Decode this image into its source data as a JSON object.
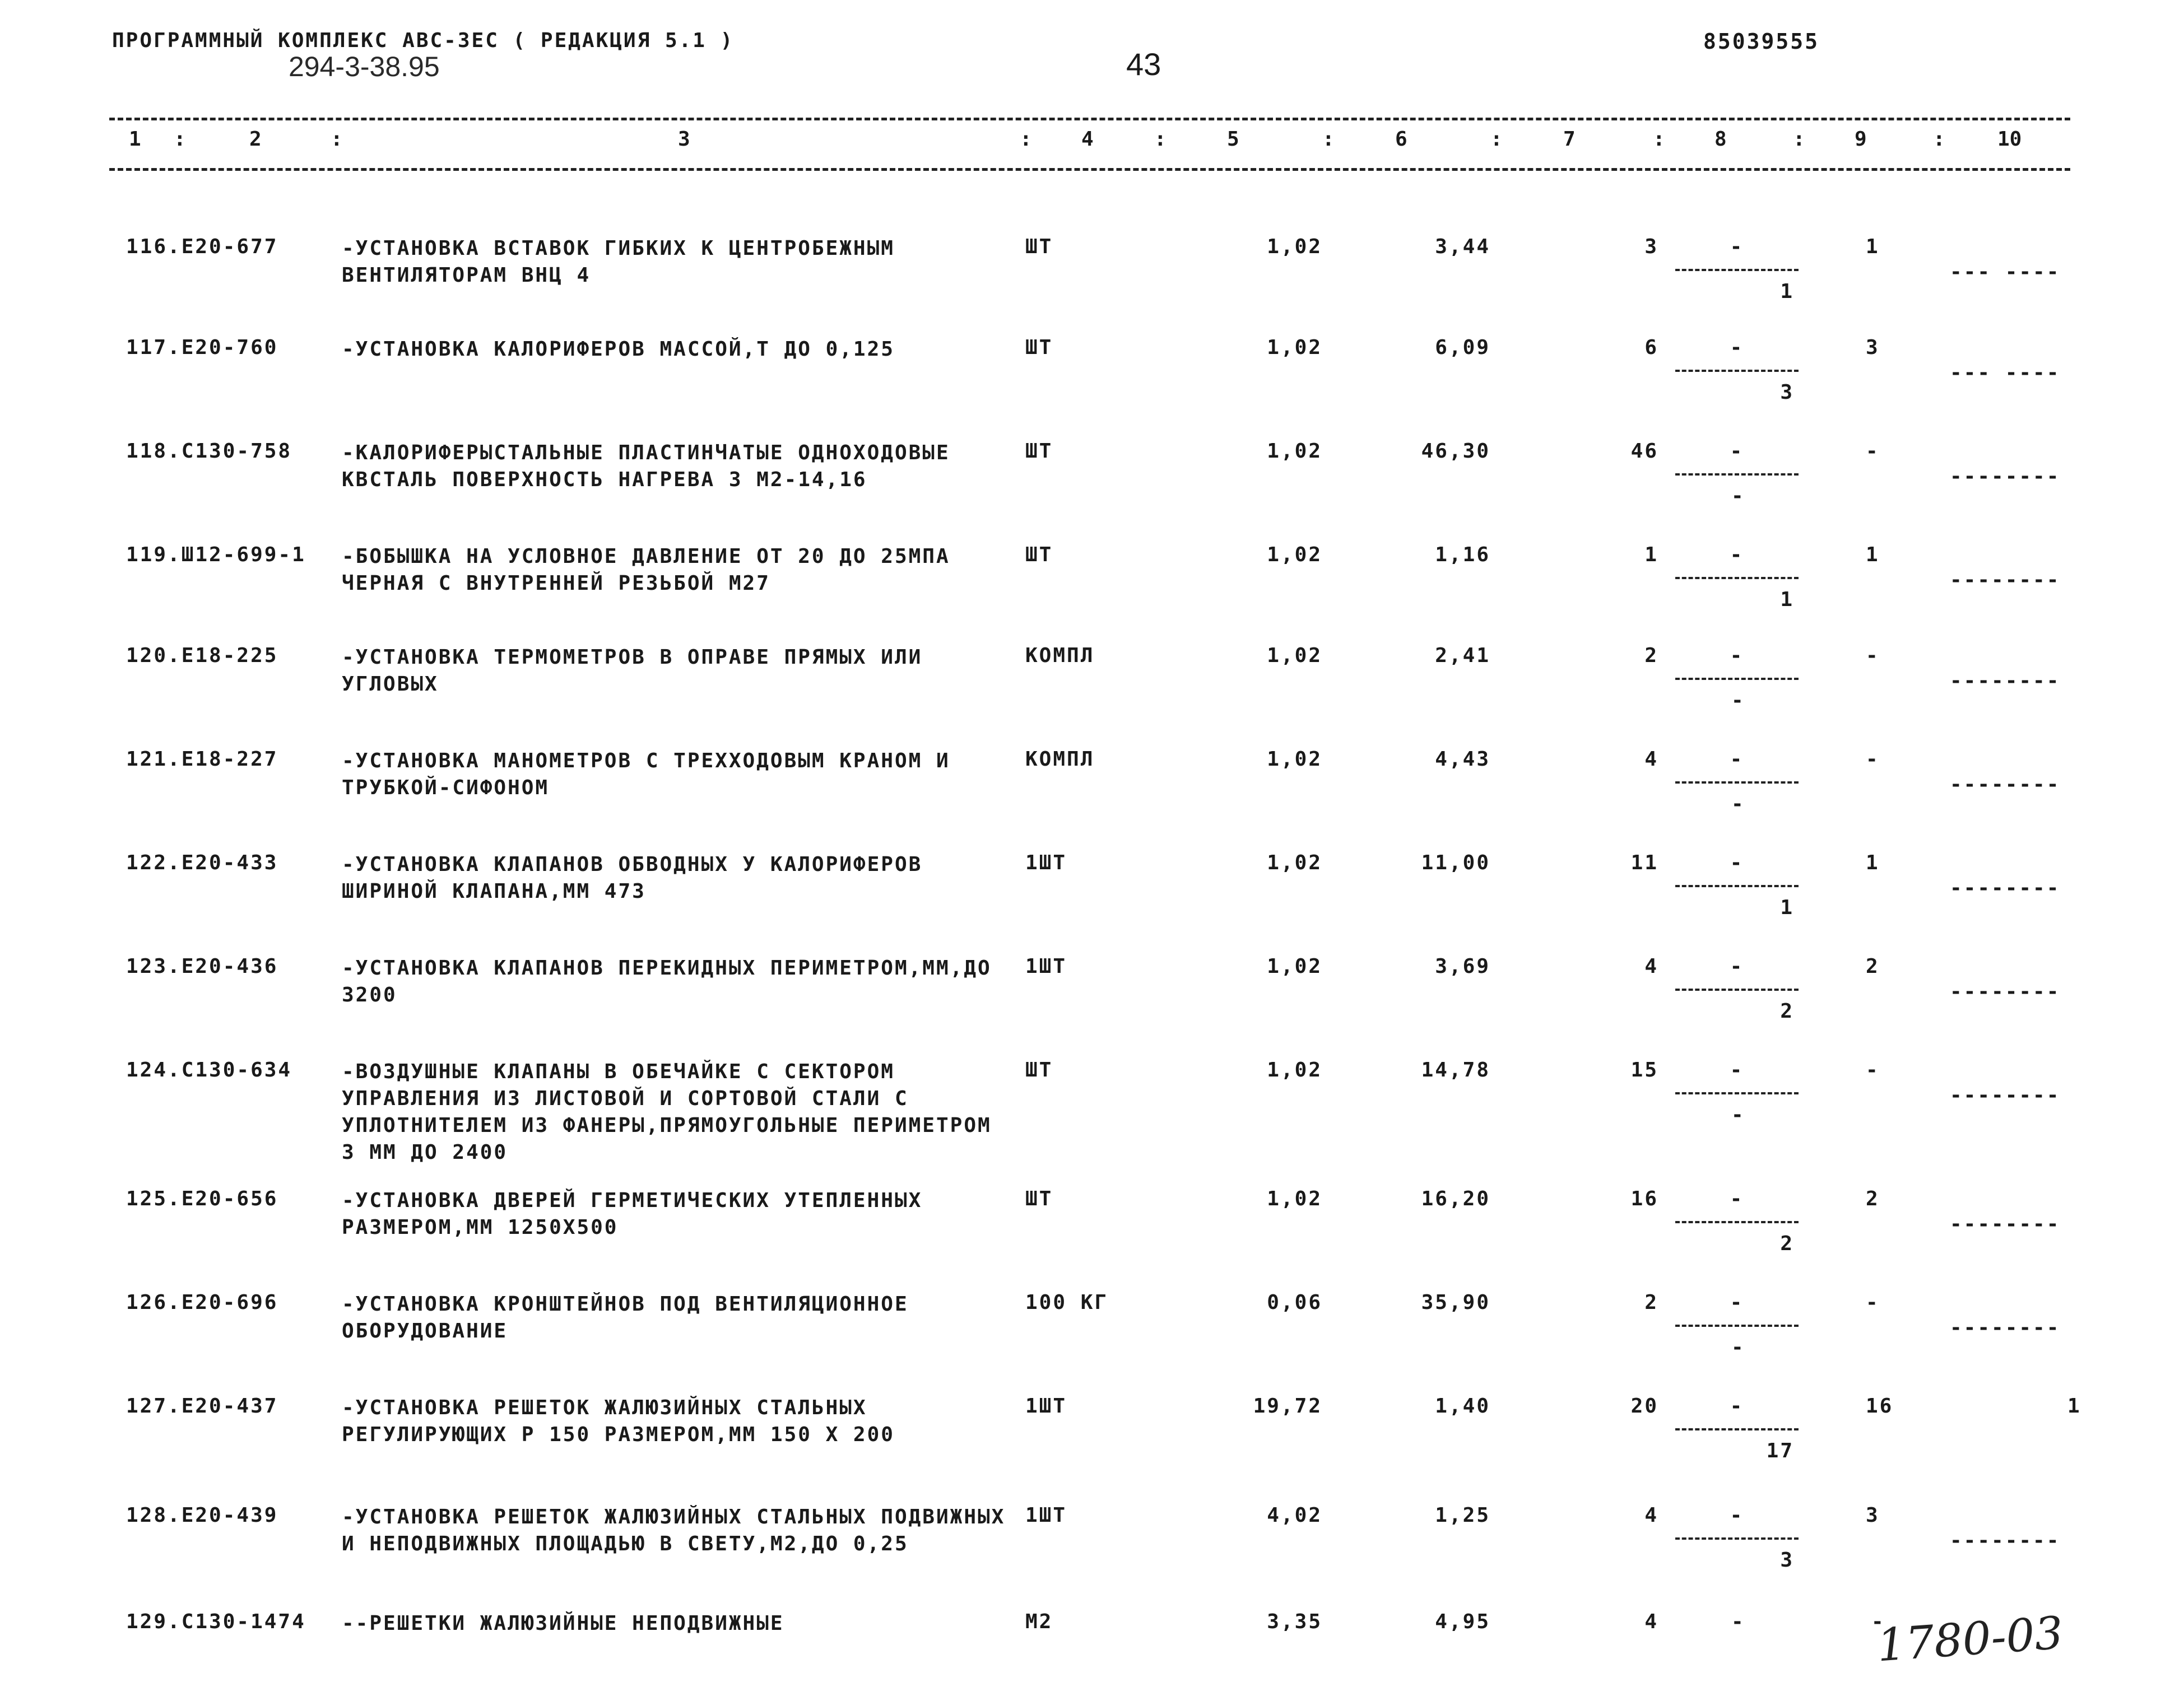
{
  "header": {
    "program": "ПРОГРАММНЫЙ КОМПЛЕКС АВС-ЗЕС  ( РЕДАКЦИЯ  5.1 )",
    "handwritten_code": "294-3-38.95",
    "page_number": "43",
    "doc_code": "85039555"
  },
  "columns": [
    "1",
    ":",
    "2",
    ":",
    "3",
    ":",
    "4",
    ":",
    "5",
    ":",
    "6",
    ":",
    "7",
    ":",
    "8",
    ":",
    "9",
    ":",
    "10"
  ],
  "rows": [
    {
      "num": "116.Е20-677",
      "name": "-УСТАНОВКА ВСТАВОК ГИБКИХ К ЦЕНТРОБЕЖНЫМ ВЕНТИЛЯТОРАМ ВНЦ 4",
      "unit": "ШТ",
      "c5": "1,02",
      "c6": "3,44",
      "c7": "3",
      "c8_top": "-",
      "c8_bot": "1",
      "c9": "1",
      "c10": "--- ----"
    },
    {
      "num": "117.Е20-760",
      "name": "-УСТАНОВКА КАЛОРИФЕРОВ МАССОЙ,Т ДО 0,125",
      "unit": "ШТ",
      "c5": "1,02",
      "c6": "6,09",
      "c7": "6",
      "c8_top": "-",
      "c8_bot": "3",
      "c9": "3",
      "c10": "--- ----"
    },
    {
      "num": "118.С130-758",
      "name": "-КАЛОРИФЕРЫСТАЛЬНЫЕ ПЛАСТИНЧАТЫЕ ОДНОХОДОВЫЕ КВСТАЛЬ ПОВЕРХНОСТЬ НАГРЕВА 3 М2-14,16",
      "unit": "ШТ",
      "c5": "1,02",
      "c6": "46,30",
      "c7": "46",
      "c8_top": "-",
      "c8_bot": "-",
      "c9": "-",
      "c10": "--------"
    },
    {
      "num": "119.Ш12-699-1",
      "name": "-БОБЫШКА НА УСЛОВНОЕ ДАВЛЕНИЕ ОТ 20 ДО 25МПА ЧЕРНАЯ С ВНУТРЕННЕЙ РЕЗЬБОЙ М27",
      "unit": "ШТ",
      "c5": "1,02",
      "c6": "1,16",
      "c7": "1",
      "c8_top": "-",
      "c8_bot": "1",
      "c9": "1",
      "c10": "--------"
    },
    {
      "num": "120.Е18-225",
      "name": "-УСТАНОВКА ТЕРМОМЕТРОВ  В ОПРАВЕ ПРЯМЫХ ИЛИ УГЛОВЫХ",
      "unit": "КОМПЛ",
      "c5": "1,02",
      "c6": "2,41",
      "c7": "2",
      "c8_top": "-",
      "c8_bot": "-",
      "c9": "-",
      "c10": "--------"
    },
    {
      "num": "121.Е18-227",
      "name": "-УСТАНОВКА МАНОМЕТРОВ  С ТРЕХХОДОВЫМ КРАНОМ И ТРУБКОЙ-СИФОНОМ",
      "unit": "КОМПЛ",
      "c5": "1,02",
      "c6": "4,43",
      "c7": "4",
      "c8_top": "-",
      "c8_bot": "-",
      "c9": "-",
      "c10": "--------"
    },
    {
      "num": "122.Е20-433",
      "name": "-УСТАНОВКА КЛАПАНОВ ОБВОДНЫХ У КАЛОРИФЕРОВ ШИРИНОЙ КЛАПАНА,ММ 473",
      "unit": "1ШТ",
      "c5": "1,02",
      "c6": "11,00",
      "c7": "11",
      "c8_top": "-",
      "c8_bot": "1",
      "c9": "1",
      "c10": "--------"
    },
    {
      "num": "123.Е20-436",
      "name": "-УСТАНОВКА КЛАПАНОВ ПЕРЕКИДНЫХ ПЕРИМЕТРОМ,ММ,ДО 3200",
      "unit": "1ШТ",
      "c5": "1,02",
      "c6": "3,69",
      "c7": "4",
      "c8_top": "-",
      "c8_bot": "2",
      "c9": "2",
      "c10": "--------"
    },
    {
      "num": "124.С130-634",
      "name": "-ВОЗДУШНЫЕ КЛАПАНЫ В ОБЕЧАЙКЕ С СЕКТОРОМ УПРАВЛЕНИЯ ИЗ ЛИСТОВОЙ И СОРТОВОЙ СТАЛИ С УПЛОТНИТЕЛЕМ ИЗ ФАНЕРЫ,ПРЯМОУГОЛЬНЫЕ ПЕРИМЕТРОМ 3 ММ ДО 2400",
      "unit": "ШТ",
      "c5": "1,02",
      "c6": "14,78",
      "c7": "15",
      "c8_top": "-",
      "c8_bot": "-",
      "c9": "-",
      "c10": "--------"
    },
    {
      "num": "125.Е20-656",
      "name": "-УСТАНОВКА ДВЕРЕЙ ГЕРМЕТИЧЕСКИХ УТЕПЛЕННЫХ РАЗМЕРОМ,ММ 1250Х500",
      "unit": "ШТ",
      "c5": "1,02",
      "c6": "16,20",
      "c7": "16",
      "c8_top": "-",
      "c8_bot": "2",
      "c9": "2",
      "c10": "--------"
    },
    {
      "num": "126.Е20-696",
      "name": "-УСТАНОВКА КРОНШТЕЙНОВ ПОД ВЕНТИЛЯЦИОННОЕ ОБОРУДОВАНИЕ",
      "unit": "100 КГ",
      "c5": "0,06",
      "c6": "35,90",
      "c7": "2",
      "c8_top": "-",
      "c8_bot": "-",
      "c9": "-",
      "c10": "--------"
    },
    {
      "num": "127.Е20-437",
      "name": "-УСТАНОВКА РЕШЕТОК ЖАЛЮЗИЙНЫХ СТАЛЬНЫХ РЕГУЛИРУЮЩИХ Р 150 РАЗМЕРОМ,ММ 150 Х 200",
      "unit": "1ШТ",
      "c5": "19,72",
      "c6": "1,40",
      "c7": "20",
      "c8_top": "-",
      "c8_bot": "17",
      "c9": "16",
      "c10": "1"
    },
    {
      "num": "128.Е20-439",
      "name": "-УСТАНОВКА РЕШЕТОК ЖАЛЮЗИЙНЫХ СТАЛЬНЫХ ПОДВИЖНЫХ И НЕПОДВИЖНЫХ ПЛОЩАДЬЮ В СВЕТУ,М2,ДО 0,25",
      "unit": "1ШТ",
      "c5": "4,02",
      "c6": "1,25",
      "c7": "4",
      "c8_top": "-",
      "c8_bot": "3",
      "c9": "3",
      "c10": "--------"
    },
    {
      "num": "129.С130-1474",
      "name": "--РЕШЕТКИ ЖАЛЮЗИЙНЫЕ НЕПОДВИЖНЫЕ",
      "unit": "М2",
      "c5": "3,35",
      "c6": "4,95",
      "c7": "4",
      "c8_top": "-",
      "c8_bot": "",
      "c9": "-",
      "c10": ""
    }
  ],
  "signature": "1780-03"
}
